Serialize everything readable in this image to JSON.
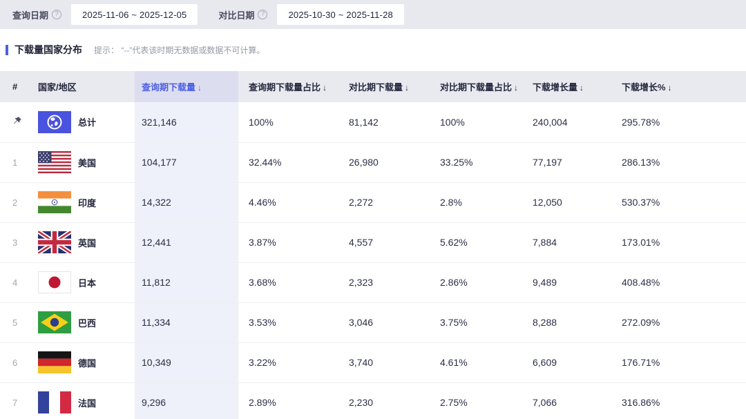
{
  "filters": {
    "query_date_label": "查询日期",
    "query_date_value": "2025-11-06  ~  2025-12-05",
    "compare_date_label": "对比日期",
    "compare_date_value": "2025-10-30  ~  2025-11-28"
  },
  "section": {
    "title": "下载量国家分布",
    "hint": "提示： “--”代表该时期无数据或数据不可计算。"
  },
  "colors": {
    "accent": "#4c5fe2",
    "topbar_bg": "#e8e9ef",
    "header_bg": "#e9eaf0",
    "sorted_header_bg": "#dcdef0",
    "sorted_col_bg": "#eef0fa"
  },
  "table": {
    "columns": [
      {
        "key": "rank",
        "label": "#",
        "sortable": false,
        "active": false
      },
      {
        "key": "country",
        "label": "国家/地区",
        "sortable": false,
        "active": false
      },
      {
        "key": "q_downloads",
        "label": "查询期下载量",
        "sortable": true,
        "active": true
      },
      {
        "key": "q_share",
        "label": "查询期下载量占比",
        "sortable": true,
        "active": false
      },
      {
        "key": "c_downloads",
        "label": "对比期下载量",
        "sortable": true,
        "active": false
      },
      {
        "key": "c_share",
        "label": "对比期下载量占比",
        "sortable": true,
        "active": false
      },
      {
        "key": "growth",
        "label": "下载增长量",
        "sortable": true,
        "active": false
      },
      {
        "key": "growth_pct",
        "label": "下载增长%",
        "sortable": true,
        "active": false
      }
    ],
    "sort_icon": "↓",
    "rows": [
      {
        "rank": "",
        "pinned": true,
        "flag": "globe",
        "country": "总计",
        "q_downloads": "321,146",
        "q_share": "100%",
        "c_downloads": "81,142",
        "c_share": "100%",
        "growth": "240,004",
        "growth_pct": "295.78%"
      },
      {
        "rank": "1",
        "pinned": false,
        "flag": "usa",
        "country": "美国",
        "q_downloads": "104,177",
        "q_share": "32.44%",
        "c_downloads": "26,980",
        "c_share": "33.25%",
        "growth": "77,197",
        "growth_pct": "286.13%"
      },
      {
        "rank": "2",
        "pinned": false,
        "flag": "india",
        "country": "印度",
        "q_downloads": "14,322",
        "q_share": "4.46%",
        "c_downloads": "2,272",
        "c_share": "2.8%",
        "growth": "12,050",
        "growth_pct": "530.37%"
      },
      {
        "rank": "3",
        "pinned": false,
        "flag": "uk",
        "country": "英国",
        "q_downloads": "12,441",
        "q_share": "3.87%",
        "c_downloads": "4,557",
        "c_share": "5.62%",
        "growth": "7,884",
        "growth_pct": "173.01%"
      },
      {
        "rank": "4",
        "pinned": false,
        "flag": "japan",
        "country": "日本",
        "q_downloads": "11,812",
        "q_share": "3.68%",
        "c_downloads": "2,323",
        "c_share": "2.86%",
        "growth": "9,489",
        "growth_pct": "408.48%"
      },
      {
        "rank": "5",
        "pinned": false,
        "flag": "brazil",
        "country": "巴西",
        "q_downloads": "11,334",
        "q_share": "3.53%",
        "c_downloads": "3,046",
        "c_share": "3.75%",
        "growth": "8,288",
        "growth_pct": "272.09%"
      },
      {
        "rank": "6",
        "pinned": false,
        "flag": "germany",
        "country": "德国",
        "q_downloads": "10,349",
        "q_share": "3.22%",
        "c_downloads": "3,740",
        "c_share": "4.61%",
        "growth": "6,609",
        "growth_pct": "176.71%"
      },
      {
        "rank": "7",
        "pinned": false,
        "flag": "france",
        "country": "法国",
        "q_downloads": "9,296",
        "q_share": "2.89%",
        "c_downloads": "2,230",
        "c_share": "2.75%",
        "growth": "7,066",
        "growth_pct": "316.86%"
      }
    ]
  }
}
